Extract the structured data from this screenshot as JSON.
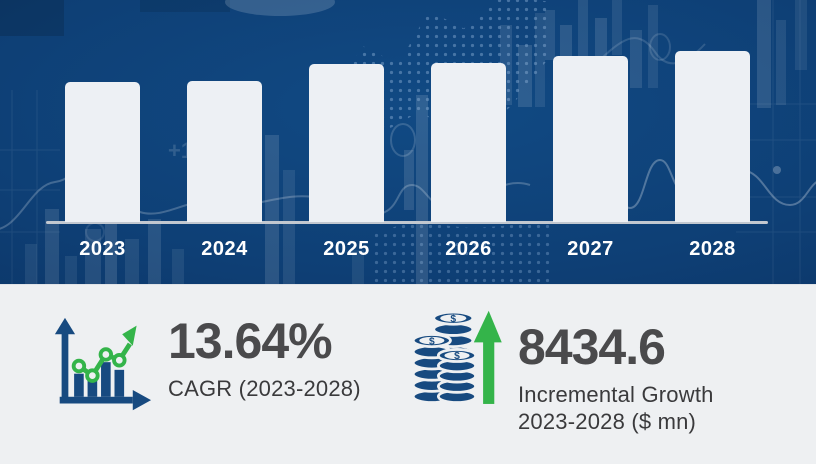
{
  "chart_data": {
    "type": "bar",
    "title": "",
    "xlabel": "",
    "ylabel": "",
    "categories": [
      "2023",
      "2024",
      "2025",
      "2026",
      "2027",
      "2028"
    ],
    "values": [
      140,
      141,
      158,
      159,
      166,
      171
    ],
    "values_note": "bar heights in pixels; chart has no numeric y-axis or gridlines, bars are illustrative of year-over-year market growth",
    "bar_color": "#edf0f4",
    "label_color": "#ffffff",
    "baseline_color": "#c2c8d0",
    "background_color": "#0e3f75",
    "background_watermark": "+1",
    "legend": "none",
    "grid": "off"
  },
  "stats": {
    "cagr": {
      "value": "13.64%",
      "label": "CAGR (2023-2028)"
    },
    "incremental_growth": {
      "value": "8434.6",
      "label_line1": "Incremental Growth",
      "label_line2": "2023-2028 ($ mn)"
    },
    "currency_symbol": "$"
  },
  "icons": {
    "cagr_icon": "growth-bar-chart-with-trend-arrow",
    "incremental_growth_icon": "coin-stacks-with-up-arrow"
  },
  "colors": {
    "chart_background": "#0e3f75",
    "panel_background": "#eef0f2",
    "icon_navy": "#174a80",
    "icon_green": "#34b44a",
    "value_text": "#4a4a4c",
    "label_text": "#3a3a3c"
  }
}
